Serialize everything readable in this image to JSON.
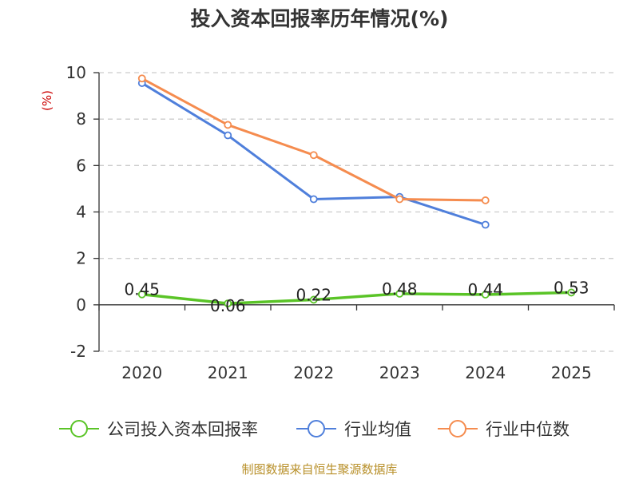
{
  "chart_data": {
    "type": "line",
    "title": "投入资本回报率历年情况(%)",
    "ylabel": "(%)",
    "categories": [
      "2020",
      "2021",
      "2022",
      "2023",
      "2024",
      "2025"
    ],
    "ylim": [
      -2,
      10
    ],
    "yticks": [
      "10",
      "8",
      "6",
      "4",
      "2",
      "0",
      "-2"
    ],
    "grid": true,
    "legend_position": "bottom",
    "series": [
      {
        "name": "公司投入资本回报率",
        "color": "#5ac427",
        "values": [
          0.45,
          0.06,
          0.22,
          0.48,
          0.44,
          0.53
        ],
        "labels": [
          "0.45",
          "0.06",
          "0.22",
          "0.48",
          "0.44",
          "0.53"
        ]
      },
      {
        "name": "行业均值",
        "color": "#4f7fdb",
        "values": [
          9.55,
          7.3,
          4.55,
          4.65,
          3.45,
          null
        ]
      },
      {
        "name": "行业中位数",
        "color": "#f58c4f",
        "values": [
          9.75,
          7.75,
          6.45,
          4.55,
          4.5,
          null
        ]
      }
    ]
  },
  "source": "制图数据来自恒生聚源数据库"
}
